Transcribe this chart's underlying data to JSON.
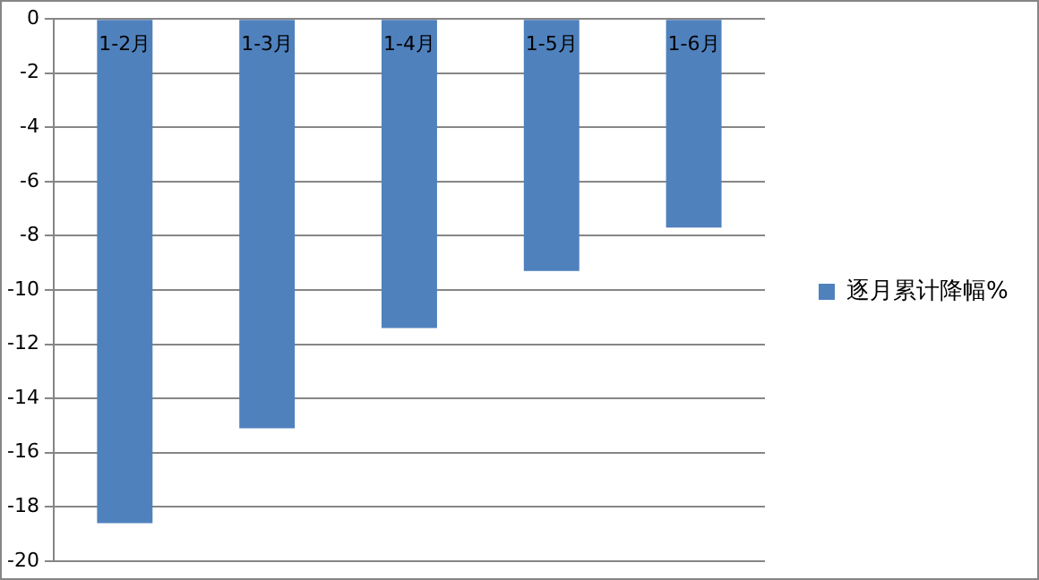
{
  "chart_data": {
    "type": "bar",
    "categories": [
      "1-2月",
      "1-3月",
      "1-4月",
      "1-5月",
      "1-6月"
    ],
    "series": [
      {
        "name": "逐月累计降幅%",
        "color": "#4f81bd",
        "values": [
          -18.6,
          -15.1,
          -11.4,
          -9.3,
          -7.7
        ]
      }
    ],
    "ylim": [
      -20,
      0
    ],
    "yticks": [
      0,
      -2,
      -4,
      -6,
      -8,
      -10,
      -12,
      -14,
      -16,
      -18,
      -20
    ],
    "grid": "y",
    "legend": "right"
  }
}
